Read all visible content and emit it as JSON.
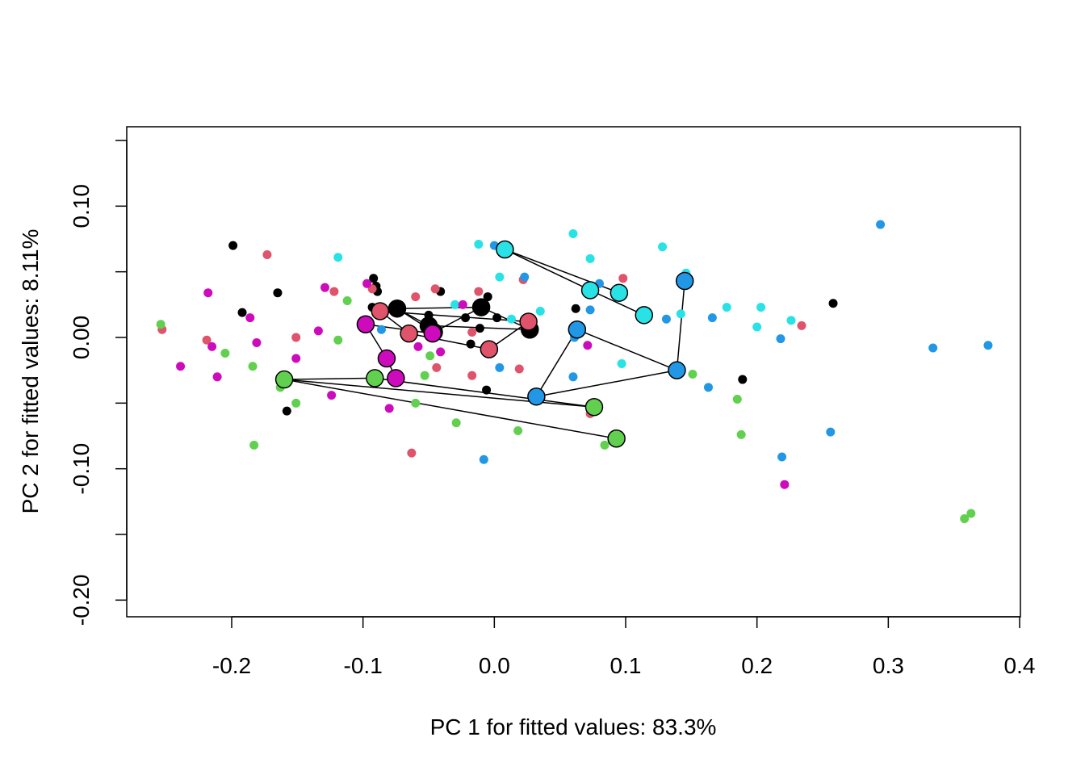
{
  "chart_data": {
    "type": "scatter",
    "title": "",
    "xlabel": "PC 1 for fitted values: 83.3%",
    "ylabel": "PC 2 for fitted values: 8.11%",
    "xlim": [
      -0.28,
      0.4
    ],
    "ylim": [
      -0.21,
      0.16
    ],
    "x_ticks": [
      -0.2,
      -0.1,
      0.0,
      0.1,
      0.2,
      0.3,
      0.4
    ],
    "x_tick_labels": [
      "-0.2",
      "-0.1",
      "0.0",
      "0.1",
      "0.2",
      "0.3",
      "0.4"
    ],
    "y_ticks": [
      -0.2,
      -0.15,
      -0.1,
      -0.05,
      0.0,
      0.05,
      0.1,
      0.15
    ],
    "y_tick_labels": [
      "-0.20",
      "",
      "-0.10",
      "",
      "0.00",
      "",
      "0.10",
      ""
    ],
    "grid": false,
    "legend": "none",
    "colors": {
      "black": "#000000",
      "red": "#DF536B",
      "green": "#61D04F",
      "blue": "#2297E6",
      "cyan": "#28E2E5",
      "magenta": "#CD0BBC"
    },
    "points": [
      {
        "c": "black",
        "x": -0.199,
        "y": 0.07
      },
      {
        "c": "black",
        "x": -0.165,
        "y": 0.034
      },
      {
        "c": "black",
        "x": -0.192,
        "y": 0.019
      },
      {
        "c": "black",
        "x": -0.092,
        "y": 0.045
      },
      {
        "c": "black",
        "x": -0.09,
        "y": 0.039
      },
      {
        "c": "black",
        "x": -0.089,
        "y": 0.035
      },
      {
        "c": "black",
        "x": -0.093,
        "y": 0.023
      },
      {
        "c": "black",
        "x": -0.041,
        "y": 0.035
      },
      {
        "c": "black",
        "x": -0.05,
        "y": 0.017
      },
      {
        "c": "black",
        "x": -0.005,
        "y": 0.031
      },
      {
        "c": "black",
        "x": -0.022,
        "y": 0.015
      },
      {
        "c": "black",
        "x": -0.011,
        "y": 0.007
      },
      {
        "c": "black",
        "x": 0.002,
        "y": 0.015
      },
      {
        "c": "black",
        "x": -0.018,
        "y": -0.005
      },
      {
        "c": "black",
        "x": -0.006,
        "y": -0.04
      },
      {
        "c": "black",
        "x": 0.062,
        "y": 0.022
      },
      {
        "c": "black",
        "x": 0.258,
        "y": 0.026
      },
      {
        "c": "black",
        "x": 0.189,
        "y": -0.032
      },
      {
        "c": "black",
        "x": -0.158,
        "y": -0.056
      },
      {
        "c": "red",
        "x": -0.173,
        "y": 0.063
      },
      {
        "c": "red",
        "x": -0.122,
        "y": 0.035
      },
      {
        "c": "red",
        "x": -0.093,
        "y": 0.037
      },
      {
        "c": "red",
        "x": -0.06,
        "y": 0.031
      },
      {
        "c": "red",
        "x": -0.045,
        "y": 0.037
      },
      {
        "c": "red",
        "x": -0.012,
        "y": 0.035
      },
      {
        "c": "red",
        "x": -0.017,
        "y": 0.004
      },
      {
        "c": "red",
        "x": 0.022,
        "y": 0.044
      },
      {
        "c": "red",
        "x": -0.151,
        "y": 0.0
      },
      {
        "c": "red",
        "x": -0.219,
        "y": -0.002
      },
      {
        "c": "red",
        "x": -0.253,
        "y": 0.006
      },
      {
        "c": "red",
        "x": -0.044,
        "y": -0.023
      },
      {
        "c": "red",
        "x": -0.017,
        "y": -0.029
      },
      {
        "c": "red",
        "x": 0.019,
        "y": -0.024
      },
      {
        "c": "red",
        "x": 0.098,
        "y": 0.045
      },
      {
        "c": "red",
        "x": 0.234,
        "y": 0.009
      },
      {
        "c": "red",
        "x": -0.063,
        "y": -0.088
      },
      {
        "c": "red",
        "x": 0.073,
        "y": -0.058
      },
      {
        "c": "green",
        "x": -0.254,
        "y": 0.01
      },
      {
        "c": "green",
        "x": -0.112,
        "y": 0.028
      },
      {
        "c": "green",
        "x": -0.119,
        "y": -0.002
      },
      {
        "c": "green",
        "x": -0.205,
        "y": -0.012
      },
      {
        "c": "green",
        "x": -0.184,
        "y": -0.022
      },
      {
        "c": "green",
        "x": -0.163,
        "y": -0.038
      },
      {
        "c": "green",
        "x": -0.151,
        "y": -0.05
      },
      {
        "c": "green",
        "x": -0.183,
        "y": -0.082
      },
      {
        "c": "green",
        "x": -0.049,
        "y": -0.014
      },
      {
        "c": "green",
        "x": -0.053,
        "y": -0.029
      },
      {
        "c": "green",
        "x": -0.06,
        "y": -0.05
      },
      {
        "c": "green",
        "x": -0.029,
        "y": -0.065
      },
      {
        "c": "green",
        "x": 0.018,
        "y": -0.071
      },
      {
        "c": "green",
        "x": 0.084,
        "y": -0.082
      },
      {
        "c": "green",
        "x": 0.151,
        "y": -0.028
      },
      {
        "c": "green",
        "x": 0.185,
        "y": -0.047
      },
      {
        "c": "green",
        "x": 0.188,
        "y": -0.074
      },
      {
        "c": "green",
        "x": 0.358,
        "y": -0.138
      },
      {
        "c": "green",
        "x": 0.363,
        "y": -0.134
      },
      {
        "c": "blue",
        "x": 0.0,
        "y": 0.07
      },
      {
        "c": "blue",
        "x": 0.023,
        "y": 0.046
      },
      {
        "c": "blue",
        "x": 0.08,
        "y": 0.041
      },
      {
        "c": "blue",
        "x": 0.073,
        "y": 0.021
      },
      {
        "c": "blue",
        "x": 0.131,
        "y": 0.014
      },
      {
        "c": "blue",
        "x": 0.166,
        "y": 0.015
      },
      {
        "c": "blue",
        "x": 0.218,
        "y": -0.001
      },
      {
        "c": "blue",
        "x": 0.061,
        "y": 0.0
      },
      {
        "c": "blue",
        "x": 0.004,
        "y": -0.023
      },
      {
        "c": "blue",
        "x": 0.06,
        "y": -0.03
      },
      {
        "c": "blue",
        "x": 0.163,
        "y": -0.038
      },
      {
        "c": "blue",
        "x": -0.086,
        "y": 0.006
      },
      {
        "c": "blue",
        "x": -0.008,
        "y": -0.093
      },
      {
        "c": "blue",
        "x": 0.219,
        "y": -0.091
      },
      {
        "c": "blue",
        "x": 0.256,
        "y": -0.072
      },
      {
        "c": "blue",
        "x": 0.294,
        "y": 0.086
      },
      {
        "c": "blue",
        "x": 0.334,
        "y": -0.008
      },
      {
        "c": "blue",
        "x": 0.376,
        "y": -0.006
      },
      {
        "c": "cyan",
        "x": -0.012,
        "y": 0.071
      },
      {
        "c": "cyan",
        "x": 0.06,
        "y": 0.079
      },
      {
        "c": "cyan",
        "x": 0.128,
        "y": 0.069
      },
      {
        "c": "cyan",
        "x": 0.073,
        "y": 0.06
      },
      {
        "c": "cyan",
        "x": -0.119,
        "y": 0.061
      },
      {
        "c": "cyan",
        "x": 0.004,
        "y": 0.046
      },
      {
        "c": "cyan",
        "x": 0.146,
        "y": 0.049
      },
      {
        "c": "cyan",
        "x": -0.03,
        "y": 0.025
      },
      {
        "c": "cyan",
        "x": 0.035,
        "y": 0.02
      },
      {
        "c": "cyan",
        "x": 0.142,
        "y": 0.018
      },
      {
        "c": "cyan",
        "x": 0.177,
        "y": 0.023
      },
      {
        "c": "cyan",
        "x": 0.203,
        "y": 0.023
      },
      {
        "c": "cyan",
        "x": 0.226,
        "y": 0.013
      },
      {
        "c": "cyan",
        "x": 0.2,
        "y": 0.008
      },
      {
        "c": "cyan",
        "x": 0.097,
        "y": -0.02
      },
      {
        "c": "cyan",
        "x": 0.013,
        "y": 0.014
      },
      {
        "c": "magenta",
        "x": -0.218,
        "y": 0.034
      },
      {
        "c": "magenta",
        "x": -0.129,
        "y": 0.038
      },
      {
        "c": "magenta",
        "x": -0.097,
        "y": 0.041
      },
      {
        "c": "magenta",
        "x": -0.024,
        "y": 0.025
      },
      {
        "c": "magenta",
        "x": -0.186,
        "y": 0.015
      },
      {
        "c": "magenta",
        "x": -0.134,
        "y": 0.005
      },
      {
        "c": "magenta",
        "x": -0.181,
        "y": -0.004
      },
      {
        "c": "magenta",
        "x": -0.215,
        "y": -0.007
      },
      {
        "c": "magenta",
        "x": -0.151,
        "y": -0.016
      },
      {
        "c": "magenta",
        "x": -0.058,
        "y": -0.007
      },
      {
        "c": "magenta",
        "x": -0.041,
        "y": -0.011
      },
      {
        "c": "magenta",
        "x": -0.239,
        "y": -0.022
      },
      {
        "c": "magenta",
        "x": -0.211,
        "y": -0.03
      },
      {
        "c": "magenta",
        "x": -0.124,
        "y": -0.044
      },
      {
        "c": "magenta",
        "x": -0.08,
        "y": -0.054
      },
      {
        "c": "magenta",
        "x": 0.071,
        "y": -0.006
      },
      {
        "c": "magenta",
        "x": 0.221,
        "y": -0.112
      }
    ],
    "groups": [
      {
        "c": "black",
        "points": [
          [
            -0.074,
            0.022
          ],
          [
            -0.05,
            0.009
          ],
          [
            -0.046,
            0.004
          ],
          [
            -0.01,
            0.023
          ],
          [
            0.027,
            0.006
          ]
        ],
        "edges": [
          [
            0,
            1
          ],
          [
            0,
            2
          ],
          [
            0,
            3
          ],
          [
            1,
            2
          ],
          [
            1,
            4
          ],
          [
            3,
            4
          ],
          [
            2,
            3
          ]
        ]
      },
      {
        "c": "red",
        "points": [
          [
            -0.087,
            0.02
          ],
          [
            -0.065,
            0.003
          ],
          [
            -0.004,
            -0.009
          ],
          [
            0.026,
            0.012
          ]
        ],
        "edges": [
          [
            0,
            1
          ],
          [
            0,
            3
          ],
          [
            1,
            2
          ],
          [
            2,
            3
          ]
        ]
      },
      {
        "c": "magenta",
        "points": [
          [
            -0.098,
            0.01
          ],
          [
            -0.082,
            -0.016
          ],
          [
            -0.075,
            -0.031
          ],
          [
            -0.047,
            0.003
          ]
        ],
        "edges": [
          [
            0,
            1
          ],
          [
            1,
            2
          ],
          [
            0,
            3
          ]
        ]
      },
      {
        "c": "green",
        "points": [
          [
            -0.16,
            -0.032
          ],
          [
            -0.091,
            -0.031
          ],
          [
            0.076,
            -0.053
          ],
          [
            0.093,
            -0.077
          ]
        ],
        "edges": [
          [
            0,
            1
          ],
          [
            0,
            2
          ],
          [
            0,
            3
          ],
          [
            1,
            2
          ]
        ]
      },
      {
        "c": "blue",
        "points": [
          [
            0.032,
            -0.045
          ],
          [
            0.063,
            0.006
          ],
          [
            0.139,
            -0.025
          ],
          [
            0.145,
            0.043
          ]
        ],
        "edges": [
          [
            0,
            1
          ],
          [
            1,
            2
          ],
          [
            2,
            3
          ],
          [
            0,
            2
          ]
        ]
      },
      {
        "c": "cyan",
        "points": [
          [
            0.008,
            0.067
          ],
          [
            0.073,
            0.036
          ],
          [
            0.095,
            0.034
          ],
          [
            0.114,
            0.017
          ]
        ],
        "edges": [
          [
            0,
            2
          ],
          [
            0,
            1
          ],
          [
            1,
            3
          ]
        ]
      }
    ]
  }
}
